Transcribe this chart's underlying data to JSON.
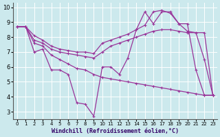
{
  "xlabel": "Windchill (Refroidissement éolien,°C)",
  "xlim": [
    -0.5,
    23.5
  ],
  "ylim": [
    2.5,
    10.3
  ],
  "yticks": [
    3,
    4,
    5,
    6,
    7,
    8,
    9,
    10
  ],
  "xticks": [
    0,
    1,
    2,
    3,
    4,
    5,
    6,
    7,
    8,
    9,
    10,
    11,
    12,
    13,
    14,
    15,
    16,
    17,
    18,
    19,
    20,
    21,
    22,
    23
  ],
  "bg_color": "#cce9ed",
  "line_color": "#993399",
  "grid_color": "#ffffff",
  "curve1_x": [
    0,
    1,
    2,
    3,
    4,
    5,
    6,
    7,
    8,
    9,
    10,
    11,
    12,
    13,
    14,
    15,
    16,
    17,
    18,
    19,
    20,
    21,
    22,
    23
  ],
  "curve1_y": [
    8.7,
    8.7,
    7.0,
    7.2,
    5.8,
    5.8,
    5.5,
    3.6,
    3.5,
    2.7,
    6.0,
    6.0,
    5.5,
    6.6,
    8.5,
    9.7,
    8.9,
    9.7,
    9.7,
    8.9,
    8.9,
    5.8,
    4.1,
    4.1
  ],
  "curve2_x": [
    0,
    1,
    2,
    3,
    4,
    5,
    6,
    7,
    8,
    9,
    10,
    11,
    12,
    13,
    14,
    15,
    16,
    17,
    18,
    19,
    20,
    21,
    22,
    23
  ],
  "curve2_y": [
    8.7,
    8.7,
    7.6,
    7.4,
    6.8,
    6.5,
    6.2,
    5.9,
    5.8,
    5.5,
    5.3,
    5.2,
    5.1,
    5.0,
    4.9,
    4.8,
    4.7,
    4.6,
    4.5,
    4.4,
    4.3,
    4.2,
    4.1,
    4.1
  ],
  "curve3_x": [
    0,
    1,
    2,
    3,
    4,
    5,
    6,
    7,
    8,
    9,
    10,
    11,
    12,
    13,
    14,
    15,
    16,
    17,
    18,
    19,
    20,
    21,
    22,
    23
  ],
  "curve3_y": [
    8.7,
    8.7,
    7.8,
    7.6,
    7.2,
    7.0,
    6.9,
    6.8,
    6.7,
    6.6,
    7.0,
    7.4,
    7.6,
    7.8,
    8.0,
    8.2,
    8.4,
    8.5,
    8.5,
    8.4,
    8.3,
    8.3,
    8.3,
    4.1
  ],
  "curve4_x": [
    0,
    1,
    2,
    3,
    4,
    5,
    6,
    7,
    8,
    9,
    10,
    11,
    12,
    13,
    14,
    15,
    16,
    17,
    18,
    19,
    20,
    21,
    22,
    23
  ],
  "curve4_y": [
    8.7,
    8.7,
    8.1,
    7.8,
    7.4,
    7.2,
    7.1,
    7.0,
    7.0,
    6.9,
    7.6,
    7.8,
    8.0,
    8.2,
    8.5,
    8.8,
    9.7,
    9.8,
    9.6,
    8.9,
    8.4,
    8.3,
    6.5,
    4.1
  ]
}
